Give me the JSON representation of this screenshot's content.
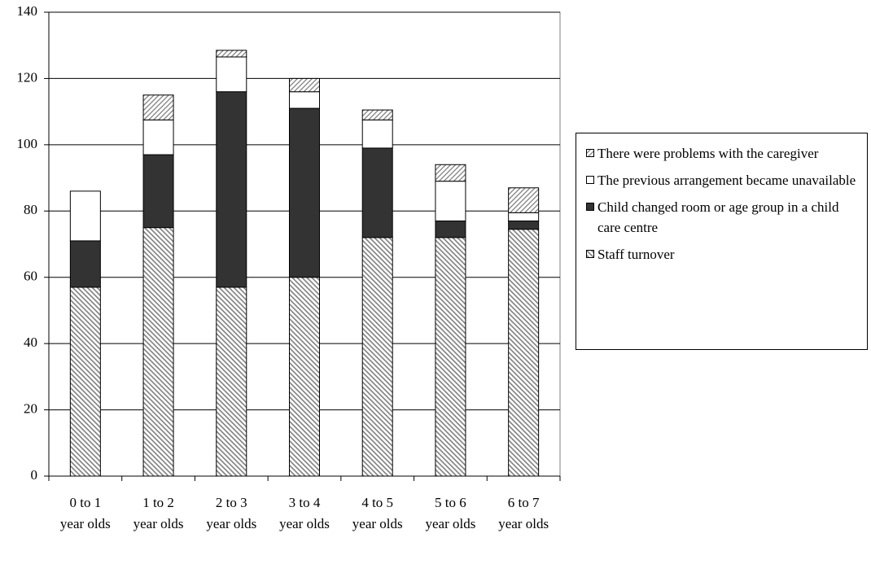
{
  "chart_data": {
    "type": "bar",
    "stacked": true,
    "categories": [
      "0 to 1 year olds",
      "1 to 2 year olds",
      "2 to 3 year olds",
      "3 to 4 year olds",
      "4 to 5 year olds",
      "5 to 6 year olds",
      "6 to 7 year olds"
    ],
    "series": [
      {
        "name": "Staff turnover",
        "color": "#808080",
        "pattern": "hatch-down",
        "values": [
          57,
          75,
          57,
          60,
          72,
          72,
          74.5
        ]
      },
      {
        "name": "Child changed room or age group in a child care centre",
        "color": "#333333",
        "pattern": "solid",
        "values": [
          14,
          22,
          59,
          51,
          27,
          5,
          2.5
        ]
      },
      {
        "name": "The previous arrangement became unavailable",
        "color": "#ffffff",
        "pattern": "solid",
        "values": [
          15,
          10.5,
          10.5,
          5,
          8.5,
          12,
          2.5
        ]
      },
      {
        "name": "There were problems with the caregiver",
        "color": "#808080",
        "pattern": "hatch-up",
        "values": [
          0,
          7.5,
          2,
          4,
          3,
          5,
          7.5
        ]
      }
    ],
    "ylim": [
      0,
      140
    ],
    "yticks": [
      0,
      20,
      40,
      60,
      80,
      100,
      120,
      140
    ],
    "grid": true,
    "legend": "right"
  }
}
